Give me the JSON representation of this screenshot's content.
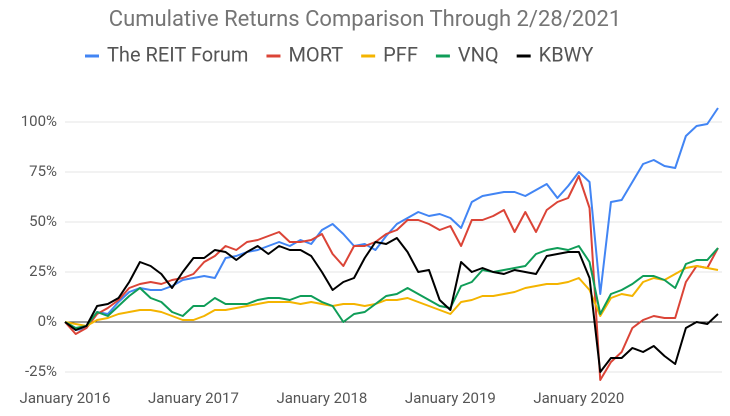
{
  "chart_data": {
    "type": "line",
    "title": "Cumulative Returns Comparison Through 2/28/2021",
    "categories": [
      "January 2016",
      null,
      null,
      null,
      null,
      null,
      null,
      null,
      null,
      null,
      null,
      null,
      "January 2017",
      null,
      null,
      null,
      null,
      null,
      null,
      null,
      null,
      null,
      null,
      null,
      "January 2018",
      null,
      null,
      null,
      null,
      null,
      null,
      null,
      null,
      null,
      null,
      null,
      "January 2019",
      null,
      null,
      null,
      null,
      null,
      null,
      null,
      null,
      null,
      null,
      null,
      "January 2020",
      null,
      null,
      null,
      null,
      null,
      null,
      null,
      null,
      null,
      null,
      null,
      null,
      null
    ],
    "series": [
      {
        "name": "The REIT Forum",
        "color": "#4285f4",
        "values": [
          0,
          -4,
          -3,
          5,
          4,
          10,
          15,
          17,
          16,
          16,
          18,
          21,
          22,
          23,
          22,
          32,
          33,
          35,
          36,
          38,
          40,
          38,
          41,
          39,
          46,
          49,
          44,
          38,
          39,
          36,
          43,
          49,
          52,
          55,
          53,
          54,
          52,
          47,
          60,
          63,
          64,
          65,
          65,
          63,
          66,
          69,
          62,
          68,
          75,
          70,
          14,
          60,
          61,
          70,
          79,
          81,
          78,
          77,
          93,
          98,
          99,
          107
        ]
      },
      {
        "name": "MORT",
        "color": "#db4437",
        "values": [
          0,
          -6,
          -3,
          4,
          7,
          11,
          17,
          19,
          20,
          19,
          21,
          22,
          24,
          30,
          33,
          38,
          36,
          40,
          41,
          43,
          45,
          40,
          40,
          41,
          44,
          34,
          28,
          38,
          38,
          40,
          44,
          46,
          51,
          51,
          49,
          46,
          48,
          38,
          51,
          51,
          53,
          56,
          45,
          55,
          45,
          56,
          60,
          62,
          73,
          57,
          -29,
          -20,
          -15,
          -3,
          1,
          3,
          2,
          2,
          20,
          28,
          27,
          37
        ]
      },
      {
        "name": "PFF",
        "color": "#f4b400",
        "values": [
          0,
          -1,
          -2,
          1,
          2,
          4,
          5,
          6,
          6,
          5,
          3,
          1,
          1,
          3,
          6,
          6,
          7,
          8,
          9,
          10,
          10,
          10,
          9,
          10,
          9,
          8,
          9,
          9,
          8,
          9,
          11,
          11,
          12,
          10,
          8,
          6,
          4,
          10,
          11,
          13,
          13,
          14,
          15,
          17,
          18,
          19,
          19,
          20,
          22,
          16,
          3,
          12,
          14,
          13,
          20,
          22,
          21,
          24,
          27,
          28,
          27,
          26
        ]
      },
      {
        "name": "VNQ",
        "color": "#0f9d58",
        "values": [
          0,
          -3,
          -2,
          5,
          3,
          8,
          13,
          17,
          12,
          10,
          5,
          3,
          8,
          8,
          12,
          9,
          9,
          9,
          11,
          12,
          12,
          11,
          13,
          13,
          10,
          8,
          0,
          4,
          5,
          9,
          13,
          14,
          17,
          14,
          11,
          8,
          7,
          18,
          20,
          26,
          25,
          26,
          27,
          28,
          34,
          36,
          37,
          36,
          38,
          30,
          4,
          14,
          16,
          19,
          23,
          23,
          21,
          17,
          29,
          31,
          31,
          37
        ]
      },
      {
        "name": "KBWY",
        "color": "#000000",
        "values": [
          0,
          -4,
          -2,
          8,
          9,
          12,
          20,
          30,
          28,
          24,
          17,
          25,
          32,
          32,
          36,
          35,
          31,
          35,
          38,
          34,
          38,
          36,
          36,
          33,
          25,
          16,
          20,
          22,
          32,
          40,
          39,
          42,
          35,
          25,
          26,
          11,
          6,
          30,
          25,
          27,
          25,
          24,
          26,
          25,
          24,
          33,
          34,
          35,
          35,
          22,
          -25,
          -18,
          -18,
          -13,
          -15,
          -12,
          -17,
          -21,
          -3,
          0,
          -1,
          4
        ]
      }
    ],
    "ylim": [
      -30,
      110
    ],
    "yticks": [
      {
        "value": -25,
        "label": "-25%"
      },
      {
        "value": 0,
        "label": "0%"
      },
      {
        "value": 25,
        "label": "25%"
      },
      {
        "value": 50,
        "label": "50%"
      },
      {
        "value": 75,
        "label": "75%"
      },
      {
        "value": 100,
        "label": "100%"
      }
    ],
    "grid": true
  }
}
